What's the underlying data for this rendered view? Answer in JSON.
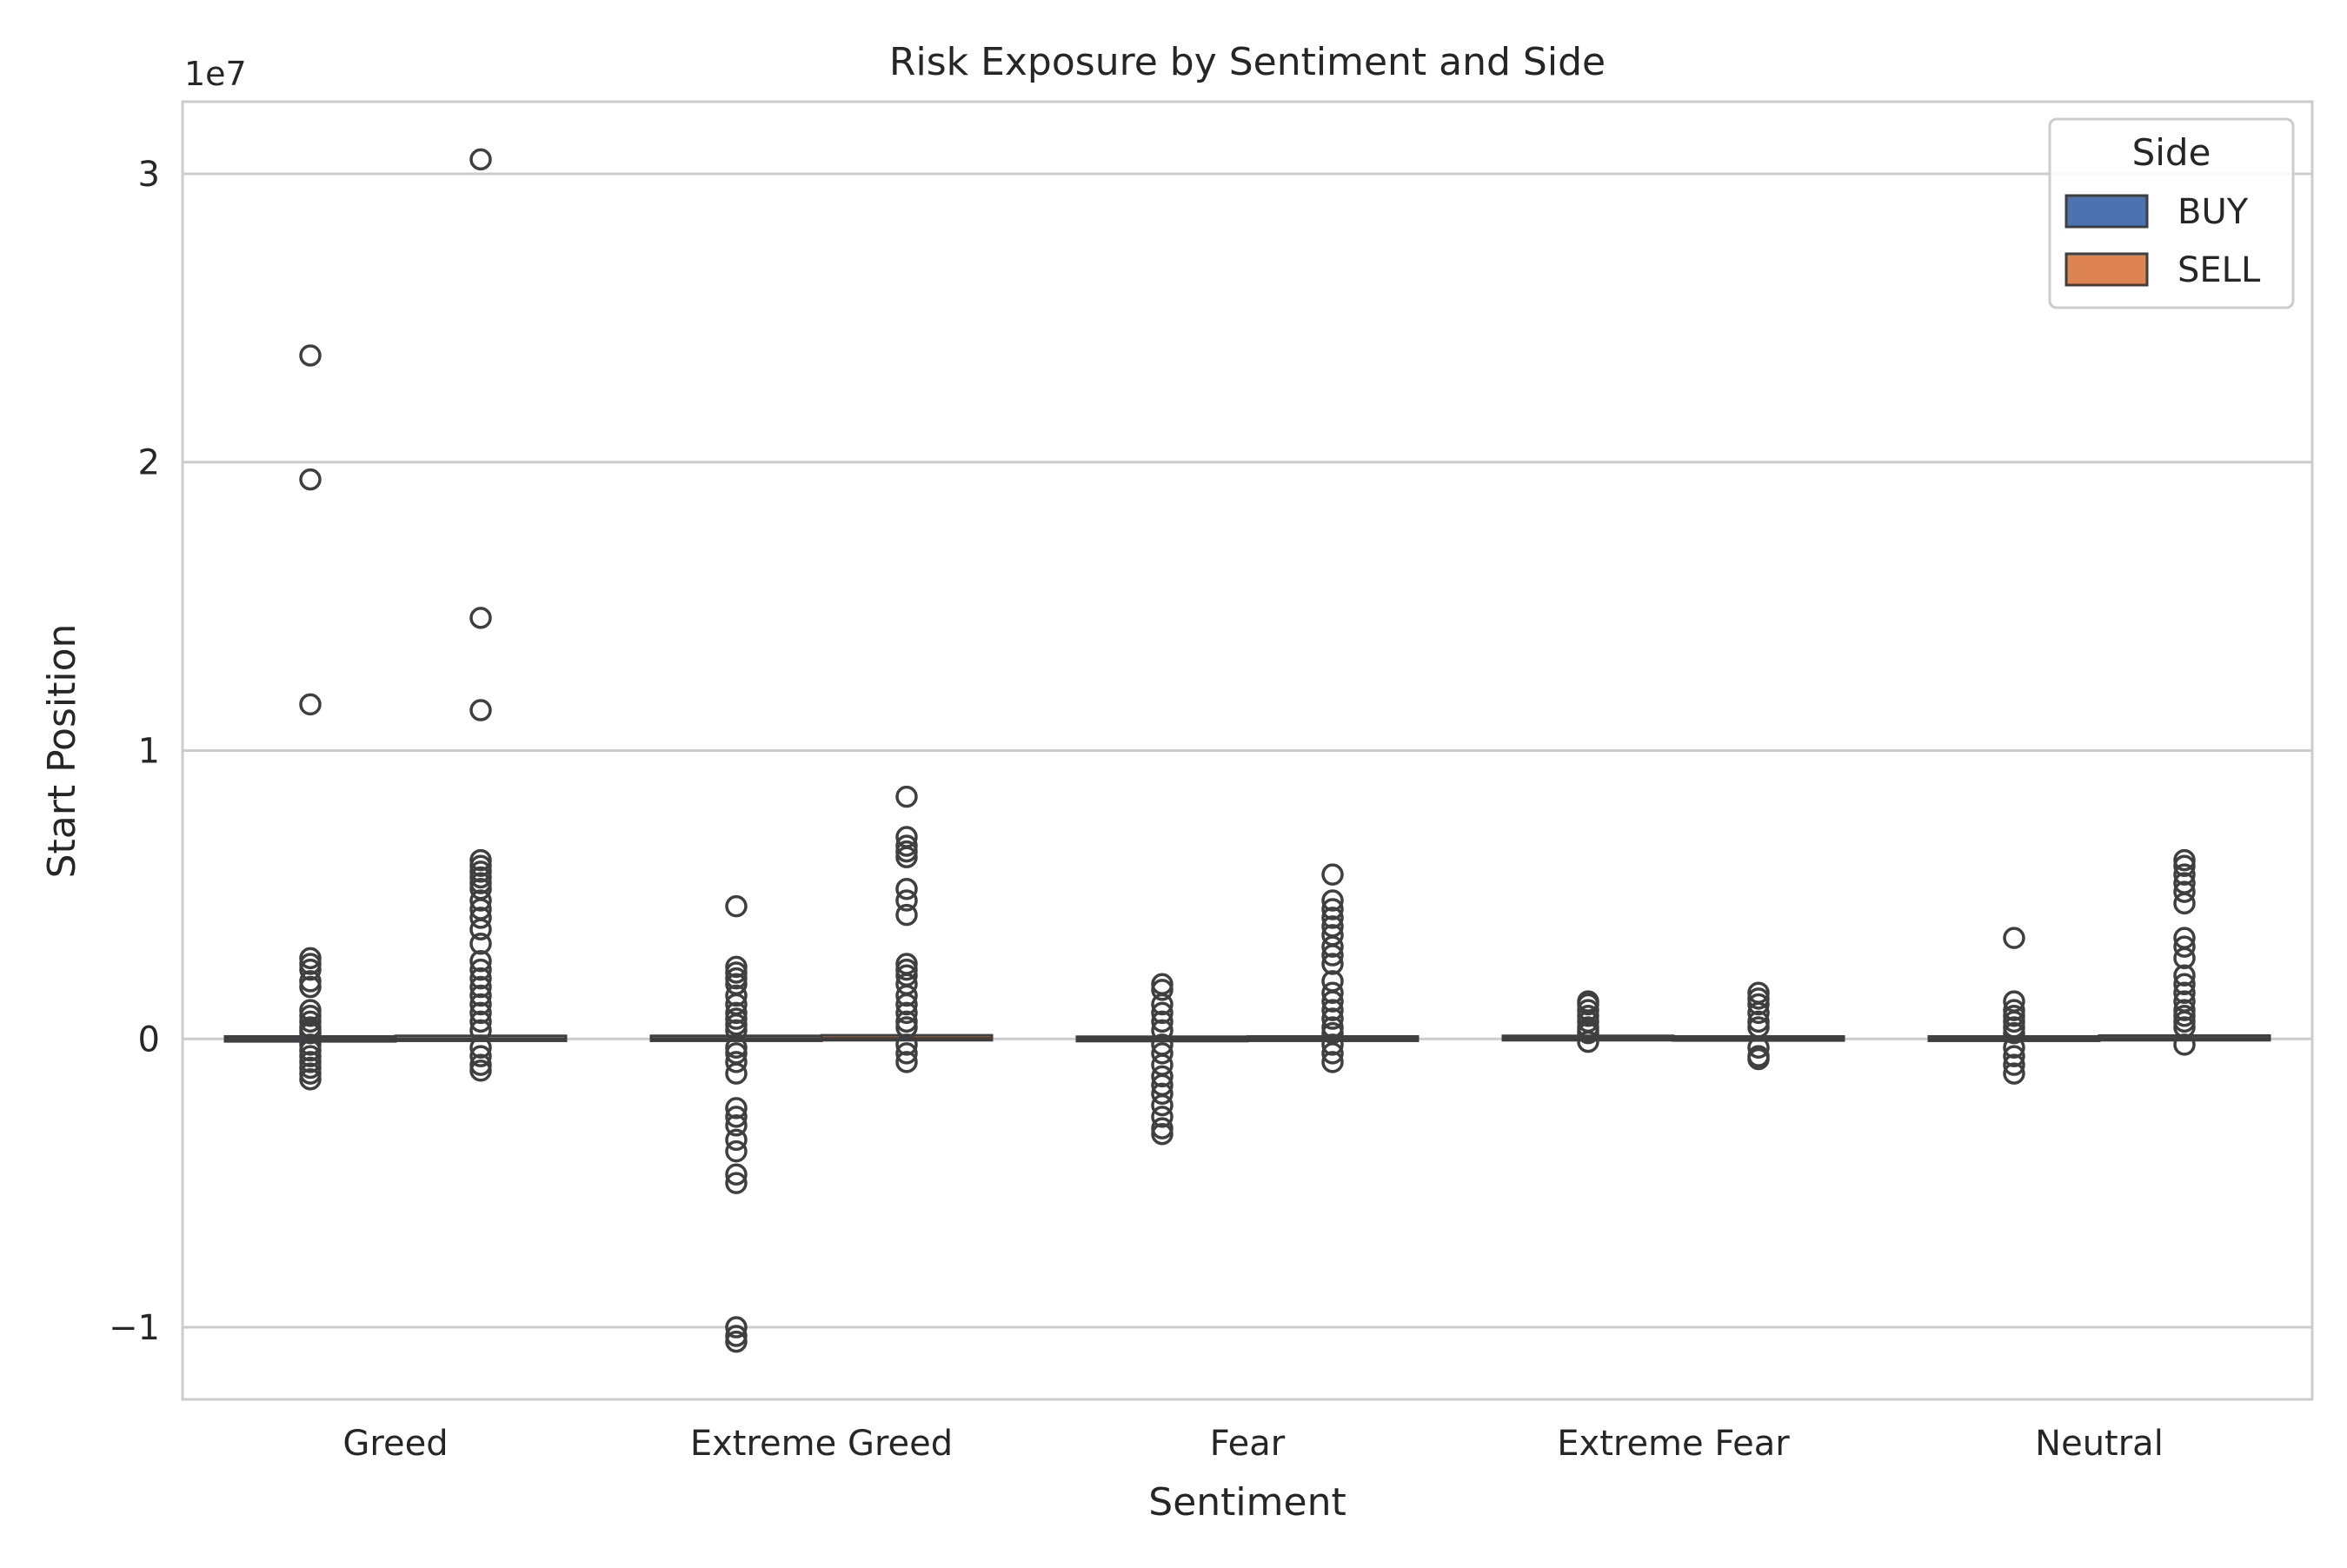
{
  "chart_data": {
    "type": "box",
    "title": "Risk Exposure by Sentiment and Side",
    "xlabel": "Sentiment",
    "ylabel": "Start Position",
    "y_offset_label": "1e7",
    "y_scale_multiplier": 10000000,
    "ylim": [
      -12500000.0,
      32500000.0
    ],
    "y_ticks": [
      -10000000,
      0,
      10000000,
      20000000,
      30000000
    ],
    "y_tick_labels": [
      "−1",
      "0",
      "1",
      "2",
      "3"
    ],
    "grid": "horizontal",
    "legend": {
      "title": "Side",
      "placement": "top-right"
    },
    "categories": [
      "Greed",
      "Extreme Greed",
      "Fear",
      "Extreme Fear",
      "Neutral"
    ],
    "series": [
      {
        "name": "BUY",
        "color": "#4c72b0",
        "boxes": [
          {
            "q1": -40000,
            "median": 0,
            "q3": 40000,
            "whisker_low": -120000,
            "whisker_high": 120000,
            "outliers": [
              23700000,
              19400000,
              11600000,
              2800000,
              2600000,
              2400000,
              2000000,
              1800000,
              1000000,
              800000,
              600000,
              400000,
              300000,
              200000,
              -200000,
              -400000,
              -600000,
              -800000,
              -1000000,
              -1200000,
              -1400000
            ]
          },
          {
            "q1": -20000,
            "median": 0,
            "q3": 60000,
            "whisker_low": -100000,
            "whisker_high": 150000,
            "outliers": [
              4600000,
              2500000,
              2300000,
              2100000,
              1900000,
              1500000,
              1200000,
              900000,
              700000,
              500000,
              300000,
              -300000,
              -500000,
              -800000,
              -1200000,
              -2400000,
              -2700000,
              -3000000,
              -3500000,
              -3900000,
              -4700000,
              -5000000,
              -10000000,
              -10300000,
              -10500000
            ]
          },
          {
            "q1": -30000,
            "median": 0,
            "q3": 30000,
            "whisker_low": -90000,
            "whisker_high": 90000,
            "outliers": [
              1900000,
              1700000,
              1200000,
              900000,
              600000,
              300000,
              -200000,
              -500000,
              -900000,
              -1300000,
              -1600000,
              -1900000,
              -2300000,
              -2700000,
              -3100000,
              -3300000
            ]
          },
          {
            "q1": 0,
            "median": 20000,
            "q3": 60000,
            "whisker_low": -30000,
            "whisker_high": 120000,
            "outliers": [
              1300000,
              1200000,
              1000000,
              800000,
              600000,
              400000,
              300000,
              200000,
              -100000
            ]
          },
          {
            "q1": -20000,
            "median": 0,
            "q3": 40000,
            "whisker_low": -80000,
            "whisker_high": 120000,
            "outliers": [
              3500000,
              1300000,
              1000000,
              800000,
              600000,
              400000,
              200000,
              -300000,
              -600000,
              -900000,
              -1200000
            ]
          }
        ]
      },
      {
        "name": "SELL",
        "color": "#dd8452",
        "boxes": [
          {
            "q1": -20000,
            "median": 0,
            "q3": 60000,
            "whisker_low": -100000,
            "whisker_high": 150000,
            "outliers": [
              30500000,
              14600000,
              11400000,
              6200000,
              6000000,
              5800000,
              5600000,
              5400000,
              5200000,
              4800000,
              4500000,
              4200000,
              3800000,
              3300000,
              2700000,
              2400000,
              2100000,
              1800000,
              1500000,
              1200000,
              900000,
              600000,
              300000,
              -300000,
              -600000,
              -900000,
              -1100000
            ]
          },
          {
            "q1": 0,
            "median": 20000,
            "q3": 80000,
            "whisker_low": -60000,
            "whisker_high": 160000,
            "outliers": [
              8400000,
              7000000,
              6700000,
              6500000,
              6300000,
              5200000,
              4800000,
              4300000,
              2600000,
              2400000,
              2200000,
              1900000,
              1500000,
              1200000,
              900000,
              600000,
              400000,
              -200000,
              -500000,
              -800000
            ]
          },
          {
            "q1": -20000,
            "median": 0,
            "q3": 40000,
            "whisker_low": -80000,
            "whisker_high": 100000,
            "outliers": [
              5700000,
              4800000,
              4500000,
              4200000,
              3900000,
              3600000,
              3200000,
              2900000,
              2600000,
              2000000,
              1600000,
              1300000,
              1000000,
              700000,
              400000,
              200000,
              -200000,
              -500000,
              -800000
            ]
          },
          {
            "q1": -10000,
            "median": 10000,
            "q3": 40000,
            "whisker_low": -40000,
            "whisker_high": 80000,
            "outliers": [
              1600000,
              1400000,
              1200000,
              900000,
              600000,
              400000,
              -300000,
              -600000,
              -700000
            ]
          },
          {
            "q1": 0,
            "median": 20000,
            "q3": 70000,
            "whisker_low": -60000,
            "whisker_high": 150000,
            "outliers": [
              6200000,
              6000000,
              5700000,
              5400000,
              5100000,
              4700000,
              3500000,
              3200000,
              2800000,
              2200000,
              1900000,
              1600000,
              1300000,
              1000000,
              800000,
              600000,
              400000,
              -200000
            ]
          }
        ]
      }
    ]
  }
}
